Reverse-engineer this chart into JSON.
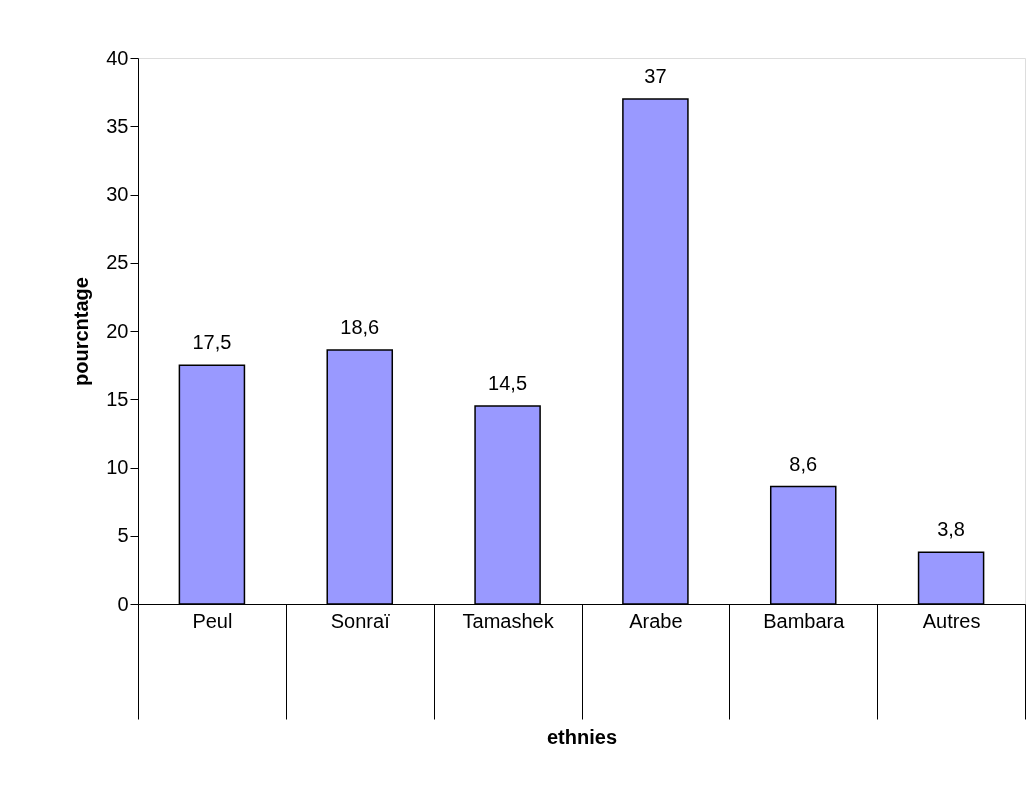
{
  "chart_data": {
    "type": "bar",
    "xlabel": "ethnies",
    "ylabel": "pourcntage",
    "categories": [
      "Peul",
      "Sonraï",
      "Tamashek",
      "Arabe",
      "Bambara",
      "Autres"
    ],
    "values": [
      17.5,
      18.6,
      14.5,
      37,
      8.6,
      3.8
    ],
    "value_labels": [
      "17,5",
      "18,6",
      "14,5",
      "37",
      "8,6",
      "3,8"
    ],
    "color": "#9999ff",
    "ylim": [
      0,
      40
    ],
    "yticks": [
      0,
      5,
      10,
      15,
      20,
      25,
      30,
      35,
      40
    ],
    "grid": false
  }
}
